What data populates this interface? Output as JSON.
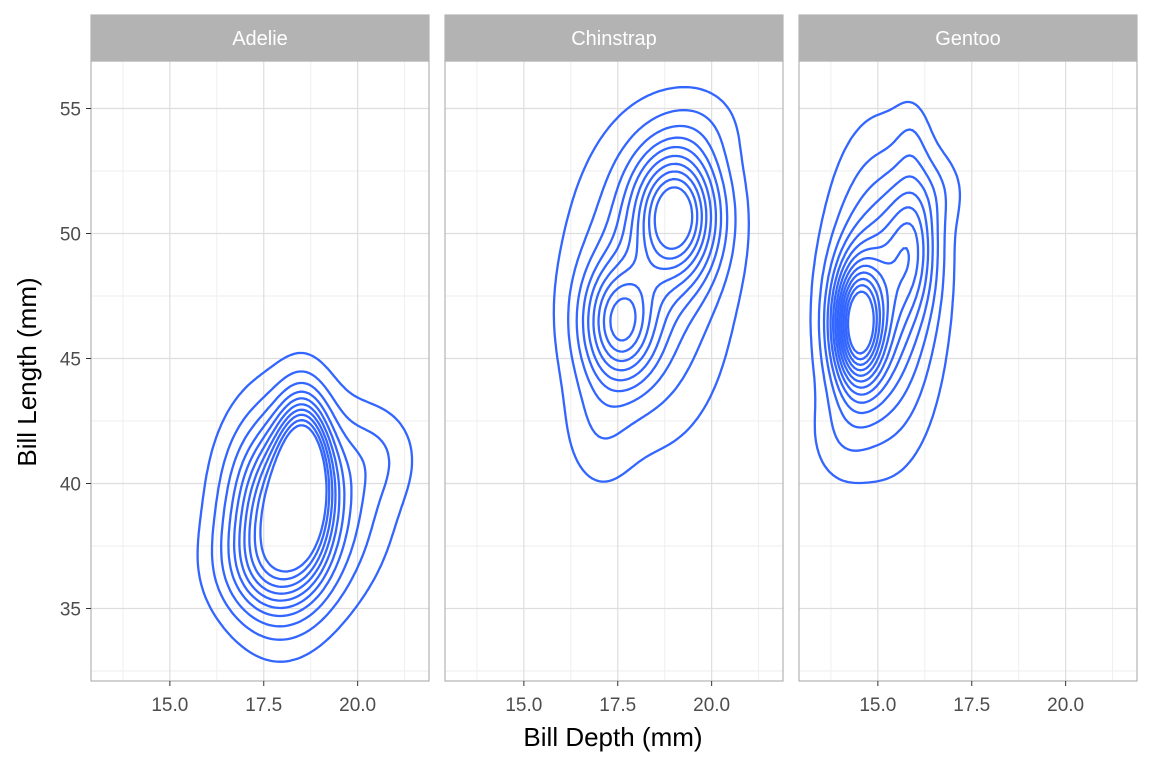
{
  "colors": {
    "contour": "#3366ff",
    "strip_bg": "#b3b3b3",
    "panel_border": "#b3b3b3",
    "grid_major": "#dedede",
    "grid_minor": "#eeeeee",
    "tick_text": "#4d4d4d"
  },
  "chart_data": {
    "type": "contour",
    "xlabel": "Bill Depth (mm)",
    "ylabel": "Bill Length (mm)",
    "xlim": [
      12.9,
      21.9
    ],
    "ylim": [
      32.1,
      56.9
    ],
    "x_ticks": [
      15.0,
      17.5,
      20.0
    ],
    "x_tick_labels": [
      "15.0",
      "17.5",
      "20.0"
    ],
    "y_ticks": [
      35,
      40,
      45,
      50,
      55
    ],
    "y_tick_labels": [
      "35",
      "40",
      "45",
      "50",
      "55"
    ],
    "grid": true,
    "facets": [
      {
        "label": "Adelie",
        "peaks": [
          {
            "x": 18.55,
            "y": 40.5,
            "sx": 0.45,
            "sy": 1.9,
            "w": 1.0
          },
          {
            "x": 17.9,
            "y": 38.6,
            "sx": 0.9,
            "sy": 2.6,
            "w": 0.85
          },
          {
            "x": 18.9,
            "y": 39.3,
            "sx": 1.2,
            "sy": 2.4,
            "w": 0.4
          },
          {
            "x": 20.6,
            "y": 41.2,
            "sx": 0.7,
            "sy": 1.3,
            "w": 0.12
          },
          {
            "x": 17.6,
            "y": 36.6,
            "sx": 1.0,
            "sy": 1.4,
            "w": 0.25
          }
        ],
        "levels": [
          0.09,
          0.2,
          0.31,
          0.42,
          0.52,
          0.62,
          0.72,
          0.82,
          0.93,
          1.04
        ]
      },
      {
        "label": "Chinstrap",
        "peaks": [
          {
            "x": 19.05,
            "y": 50.8,
            "sx": 0.75,
            "sy": 1.8,
            "w": 1.0
          },
          {
            "x": 17.55,
            "y": 46.4,
            "sx": 0.65,
            "sy": 1.6,
            "w": 0.72
          },
          {
            "x": 18.3,
            "y": 48.0,
            "sx": 1.25,
            "sy": 3.6,
            "w": 0.32
          },
          {
            "x": 17.0,
            "y": 42.3,
            "sx": 0.6,
            "sy": 1.7,
            "w": 0.1
          },
          {
            "x": 19.8,
            "y": 54.3,
            "sx": 0.7,
            "sy": 1.1,
            "w": 0.07
          }
        ],
        "levels": [
          0.06,
          0.15,
          0.25,
          0.35,
          0.45,
          0.56,
          0.67,
          0.78,
          0.89,
          1.0
        ]
      },
      {
        "label": "Gentoo",
        "peaks": [
          {
            "x": 14.45,
            "y": 46.3,
            "sx": 0.45,
            "sy": 1.7,
            "w": 1.0
          },
          {
            "x": 15.15,
            "y": 47.5,
            "sx": 0.8,
            "sy": 3.3,
            "w": 0.55
          },
          {
            "x": 15.95,
            "y": 49.6,
            "sx": 0.45,
            "sy": 1.9,
            "w": 0.35
          },
          {
            "x": 15.9,
            "y": 53.6,
            "sx": 0.3,
            "sy": 1.1,
            "w": 0.07
          },
          {
            "x": 14.0,
            "y": 41.9,
            "sx": 0.55,
            "sy": 1.3,
            "w": 0.08
          },
          {
            "x": 16.6,
            "y": 51.7,
            "sx": 0.5,
            "sy": 1.0,
            "w": 0.07
          }
        ],
        "levels": [
          0.05,
          0.13,
          0.22,
          0.31,
          0.4,
          0.49,
          0.58,
          0.67,
          0.76,
          0.85,
          0.94,
          1.03,
          1.12
        ]
      }
    ]
  }
}
